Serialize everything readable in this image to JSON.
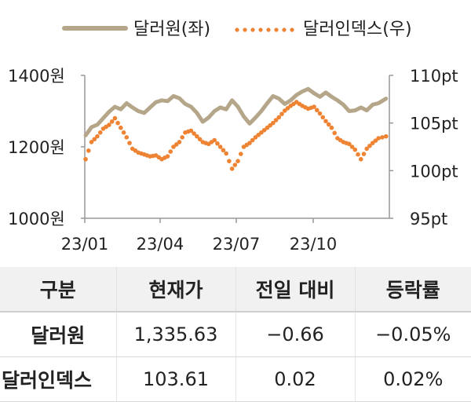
{
  "legend": {
    "dollar_label": "달러원(좌)",
    "index_label": "달러인덱스(우)"
  },
  "colors": {
    "dollar_won": "#b5a68a",
    "dollar_index": "#ee8433",
    "axis": "#888888",
    "header_bg": "#f1f1f1"
  },
  "chart_data": {
    "type": "line",
    "x_tick_labels": [
      "23/01",
      "23/04",
      "23/07",
      "23/10"
    ],
    "y_left": {
      "unit": "원",
      "range": [
        1000,
        1400
      ],
      "ticks": [
        "1400원",
        "1200원",
        "1000원"
      ]
    },
    "y_right": {
      "unit": "pt",
      "range": [
        95,
        110
      ],
      "ticks": [
        "110pt",
        "105pt",
        "100pt",
        "95pt"
      ]
    },
    "grid": false,
    "legend_position": "top",
    "series": [
      {
        "name": "달러원(좌)",
        "axis": "left",
        "style": "solid",
        "x": [
          "2023-01-02",
          "2023-01-09",
          "2023-01-16",
          "2023-01-23",
          "2023-01-30",
          "2023-02-06",
          "2023-02-13",
          "2023-02-20",
          "2023-02-27",
          "2023-03-06",
          "2023-03-13",
          "2023-03-20",
          "2023-03-27",
          "2023-04-03",
          "2023-04-10",
          "2023-04-17",
          "2023-04-24",
          "2023-05-01",
          "2023-05-08",
          "2023-05-15",
          "2023-05-22",
          "2023-05-29",
          "2023-06-05",
          "2023-06-12",
          "2023-06-19",
          "2023-06-26",
          "2023-07-03",
          "2023-07-10",
          "2023-07-17",
          "2023-07-24",
          "2023-07-31",
          "2023-08-07",
          "2023-08-14",
          "2023-08-21",
          "2023-08-28",
          "2023-09-04",
          "2023-09-11",
          "2023-09-18",
          "2023-09-25",
          "2023-10-02",
          "2023-10-09",
          "2023-10-16",
          "2023-10-23",
          "2023-10-30",
          "2023-11-06",
          "2023-11-13",
          "2023-11-20",
          "2023-11-27",
          "2023-12-04",
          "2023-12-11",
          "2023-12-18",
          "2023-12-27"
        ],
        "values": [
          1232,
          1255,
          1262,
          1280,
          1298,
          1312,
          1305,
          1322,
          1310,
          1300,
          1295,
          1310,
          1325,
          1330,
          1328,
          1342,
          1336,
          1320,
          1312,
          1295,
          1270,
          1282,
          1300,
          1310,
          1305,
          1330,
          1312,
          1285,
          1265,
          1282,
          1300,
          1322,
          1342,
          1335,
          1320,
          1330,
          1345,
          1355,
          1362,
          1350,
          1340,
          1352,
          1340,
          1330,
          1318,
          1300,
          1302,
          1310,
          1302,
          1318,
          1322,
          1335
        ]
      },
      {
        "name": "달러인덱스(우)",
        "axis": "right",
        "style": "dotted",
        "x": [
          "2023-01-02",
          "2023-01-09",
          "2023-01-16",
          "2023-01-23",
          "2023-01-30",
          "2023-02-06",
          "2023-02-13",
          "2023-02-20",
          "2023-02-27",
          "2023-03-06",
          "2023-03-13",
          "2023-03-20",
          "2023-03-27",
          "2023-04-03",
          "2023-04-10",
          "2023-04-17",
          "2023-04-24",
          "2023-05-01",
          "2023-05-08",
          "2023-05-15",
          "2023-05-22",
          "2023-05-29",
          "2023-06-05",
          "2023-06-12",
          "2023-06-19",
          "2023-06-26",
          "2023-07-03",
          "2023-07-10",
          "2023-07-17",
          "2023-07-24",
          "2023-07-31",
          "2023-08-07",
          "2023-08-14",
          "2023-08-21",
          "2023-08-28",
          "2023-09-04",
          "2023-09-11",
          "2023-09-18",
          "2023-09-25",
          "2023-10-02",
          "2023-10-09",
          "2023-10-16",
          "2023-10-23",
          "2023-10-30",
          "2023-11-06",
          "2023-11-13",
          "2023-11-20",
          "2023-11-27",
          "2023-12-04",
          "2023-12-11",
          "2023-12-18",
          "2023-12-27"
        ],
        "values": [
          101.2,
          103.0,
          103.6,
          104.4,
          104.8,
          105.5,
          104.5,
          103.5,
          102.3,
          101.9,
          101.7,
          101.5,
          101.6,
          101.2,
          101.5,
          102.5,
          103.0,
          104.0,
          104.2,
          103.6,
          103.0,
          102.8,
          103.2,
          102.5,
          101.8,
          100.2,
          101.0,
          102.5,
          102.9,
          103.5,
          104.0,
          104.5,
          105.0,
          105.6,
          106.3,
          106.8,
          107.2,
          106.8,
          106.5,
          106.7,
          106.0,
          105.2,
          104.5,
          103.4,
          103.0,
          102.8,
          102.2,
          101.2,
          102.3,
          102.9,
          103.4,
          103.6
        ]
      }
    ]
  },
  "table": {
    "headers": [
      "구분",
      "현재가",
      "전일 대비",
      "등락률"
    ],
    "rows": [
      {
        "label": "달러원",
        "price": "1,335.63",
        "change": "−0.66",
        "rate": "−0.05%"
      },
      {
        "label": "달러인덱스",
        "price": "103.61",
        "change": "0.02",
        "rate": "0.02%"
      }
    ]
  }
}
